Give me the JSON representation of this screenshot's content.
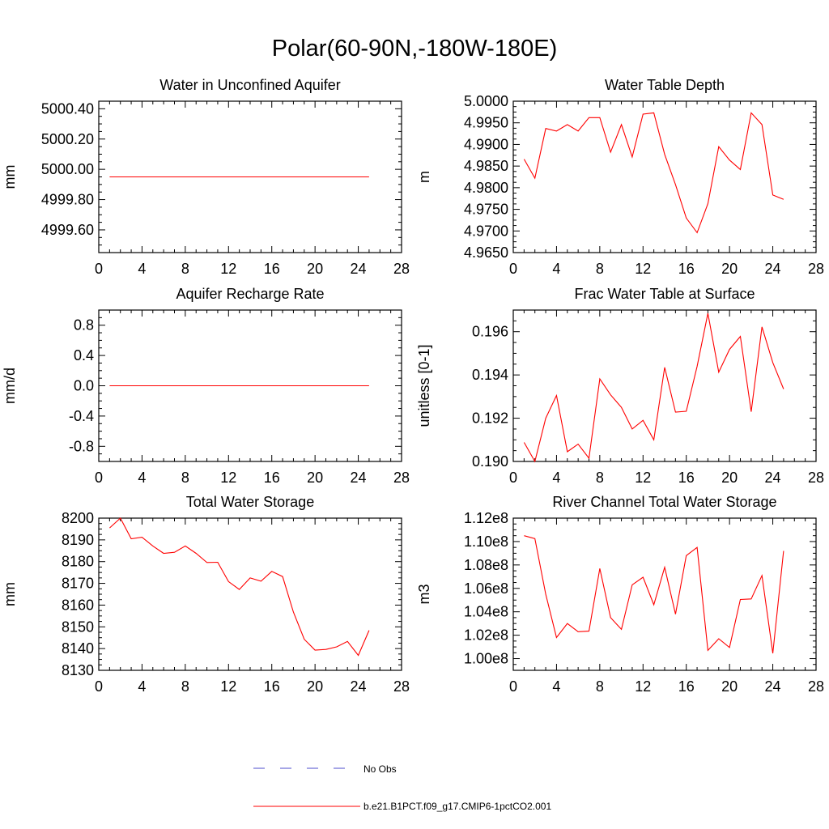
{
  "title": "Polar(60-90N,-180W-180E)",
  "legend": {
    "items": [
      {
        "label": "No Obs",
        "color": "#4d4dcc",
        "style": "dashed"
      },
      {
        "label": "b.e21.B1PCT.f09_g17.CMIP6-1pctCO2.001",
        "color": "#ff0000",
        "style": "solid"
      }
    ]
  },
  "chart_data": [
    {
      "type": "line",
      "title": "Water in Unconfined Aquifer",
      "ylabel": "mm",
      "xlim": [
        0,
        28
      ],
      "x_ticks": [
        "0",
        "4",
        "8",
        "12",
        "16",
        "20",
        "24",
        "28"
      ],
      "ylim": [
        4999.45,
        5000.45
      ],
      "y_ticks": [
        4999.6,
        4999.8,
        5000.0,
        5000.2,
        5000.4
      ],
      "y_tick_labels": [
        "4999.60",
        "4999.80",
        "5000.00",
        "5000.20",
        "5000.40"
      ],
      "series": [
        {
          "color": "#ff0000",
          "x": [
            1,
            2,
            3,
            4,
            5,
            6,
            7,
            8,
            9,
            10,
            11,
            12,
            13,
            14,
            15,
            16,
            17,
            18,
            19,
            20,
            21,
            22,
            23,
            24,
            25
          ],
          "values": [
            4999.95,
            4999.95,
            4999.95,
            4999.95,
            4999.95,
            4999.95,
            4999.95,
            4999.95,
            4999.95,
            4999.95,
            4999.95,
            4999.95,
            4999.95,
            4999.95,
            4999.95,
            4999.95,
            4999.95,
            4999.95,
            4999.95,
            4999.95,
            4999.95,
            4999.95,
            4999.95,
            4999.95,
            4999.95
          ]
        }
      ]
    },
    {
      "type": "line",
      "title": "Water Table Depth",
      "ylabel": "m",
      "xlim": [
        0,
        28
      ],
      "x_ticks": [
        "0",
        "4",
        "8",
        "12",
        "16",
        "20",
        "24",
        "28"
      ],
      "ylim": [
        4.965,
        5.0
      ],
      "y_ticks": [
        4.965,
        4.97,
        4.975,
        4.98,
        4.985,
        4.99,
        4.995,
        5.0
      ],
      "y_tick_labels": [
        "4.9650",
        "4.9700",
        "4.9750",
        "4.9800",
        "4.9850",
        "4.9900",
        "4.9950",
        "5.0000"
      ],
      "series": [
        {
          "color": "#ff0000",
          "x": [
            1,
            2,
            3,
            4,
            5,
            6,
            7,
            8,
            9,
            10,
            11,
            12,
            13,
            14,
            15,
            16,
            17,
            18,
            19,
            20,
            21,
            22,
            23,
            24,
            25
          ],
          "values": [
            4.9866,
            4.9822,
            4.9937,
            4.9931,
            4.9946,
            4.9931,
            4.9962,
            4.9962,
            4.9882,
            4.9946,
            4.9871,
            4.997,
            4.9973,
            4.9877,
            4.9807,
            4.973,
            4.9696,
            4.9763,
            4.9895,
            4.9864,
            4.9842,
            4.9973,
            4.9946,
            4.9783,
            4.9773
          ]
        }
      ]
    },
    {
      "type": "line",
      "title": "Aquifer Recharge Rate",
      "ylabel": "mm/d",
      "xlim": [
        0,
        28
      ],
      "x_ticks": [
        "0",
        "4",
        "8",
        "12",
        "16",
        "20",
        "24",
        "28"
      ],
      "ylim": [
        -1.0,
        1.0
      ],
      "y_ticks": [
        -0.8,
        -0.4,
        0.0,
        0.4,
        0.8
      ],
      "y_tick_labels": [
        "-0.8",
        "-0.4",
        "0.0",
        "0.4",
        "0.8"
      ],
      "series": [
        {
          "color": "#ff0000",
          "x": [
            1,
            2,
            3,
            4,
            5,
            6,
            7,
            8,
            9,
            10,
            11,
            12,
            13,
            14,
            15,
            16,
            17,
            18,
            19,
            20,
            21,
            22,
            23,
            24,
            25
          ],
          "values": [
            0,
            0,
            0,
            0,
            0,
            0,
            0,
            0,
            0,
            0,
            0,
            0,
            0,
            0,
            0,
            0,
            0,
            0,
            0,
            0,
            0,
            0,
            0,
            0,
            0
          ]
        }
      ]
    },
    {
      "type": "line",
      "title": "Frac Water Table at Surface",
      "ylabel": "unitless [0-1]",
      "xlim": [
        0,
        28
      ],
      "x_ticks": [
        "0",
        "4",
        "8",
        "12",
        "16",
        "20",
        "24",
        "28"
      ],
      "ylim": [
        0.19,
        0.197
      ],
      "y_ticks": [
        0.19,
        0.192,
        0.194,
        0.196
      ],
      "y_tick_labels": [
        "0.190",
        "0.192",
        "0.194",
        "0.196"
      ],
      "series": [
        {
          "color": "#ff0000",
          "x": [
            1,
            2,
            3,
            4,
            5,
            6,
            7,
            8,
            9,
            10,
            11,
            12,
            13,
            14,
            15,
            16,
            17,
            18,
            19,
            20,
            21,
            22,
            23,
            24,
            25
          ],
          "values": [
            0.19088,
            0.19,
            0.192,
            0.19305,
            0.19045,
            0.1908,
            0.19015,
            0.19382,
            0.19308,
            0.1925,
            0.1915,
            0.1919,
            0.191,
            0.19435,
            0.19228,
            0.19232,
            0.1944,
            0.19685,
            0.19413,
            0.19518,
            0.19578,
            0.1923,
            0.19622,
            0.19457,
            0.19335
          ]
        }
      ]
    },
    {
      "type": "line",
      "title": "Total Water Storage",
      "ylabel": "mm",
      "xlim": [
        0,
        28
      ],
      "x_ticks": [
        "0",
        "4",
        "8",
        "12",
        "16",
        "20",
        "24",
        "28"
      ],
      "ylim": [
        8130,
        8200
      ],
      "y_ticks": [
        8130,
        8140,
        8150,
        8160,
        8170,
        8180,
        8190,
        8200
      ],
      "y_tick_labels": [
        "8130",
        "8140",
        "8150",
        "8160",
        "8170",
        "8180",
        "8190",
        "8200"
      ],
      "series": [
        {
          "color": "#ff0000",
          "x": [
            1,
            2,
            3,
            4,
            5,
            6,
            7,
            8,
            9,
            10,
            11,
            12,
            13,
            14,
            15,
            16,
            17,
            18,
            19,
            20,
            21,
            22,
            23,
            24,
            25
          ],
          "values": [
            8195.5,
            8200.0,
            8190.5,
            8191.2,
            8187.2,
            8183.8,
            8184.3,
            8187.2,
            8183.8,
            8179.6,
            8179.7,
            8170.8,
            8167.2,
            8172.5,
            8171.0,
            8175.5,
            8173.1,
            8156.8,
            8144.3,
            8139.3,
            8139.6,
            8140.8,
            8143.3,
            8136.9,
            8148.4
          ]
        }
      ]
    },
    {
      "type": "line",
      "title": "River Channel Total Water Storage",
      "ylabel": "m3",
      "xlim": [
        0,
        28
      ],
      "x_ticks": [
        "0",
        "4",
        "8",
        "12",
        "16",
        "20",
        "24",
        "28"
      ],
      "ylim": [
        99000000,
        112000000
      ],
      "y_ticks": [
        100000000,
        102000000,
        104000000,
        106000000,
        108000000,
        110000000,
        112000000
      ],
      "y_tick_labels": [
        "1.00e8",
        "1.02e8",
        "1.04e8",
        "1.06e8",
        "1.08e8",
        "1.10e8",
        "1.12e8"
      ],
      "series": [
        {
          "color": "#ff0000",
          "x": [
            1,
            2,
            3,
            4,
            5,
            6,
            7,
            8,
            9,
            10,
            11,
            12,
            13,
            14,
            15,
            16,
            17,
            18,
            19,
            20,
            21,
            22,
            23,
            24,
            25
          ],
          "values": [
            110500000,
            110250000,
            105500000,
            101800000,
            103000000,
            102300000,
            102350000,
            107700000,
            103500000,
            102500000,
            106300000,
            106950000,
            104600000,
            107800000,
            103800000,
            108800000,
            109500000,
            100700000,
            101700000,
            100950000,
            105050000,
            105100000,
            107100000,
            100450000,
            109200000
          ]
        }
      ]
    }
  ]
}
